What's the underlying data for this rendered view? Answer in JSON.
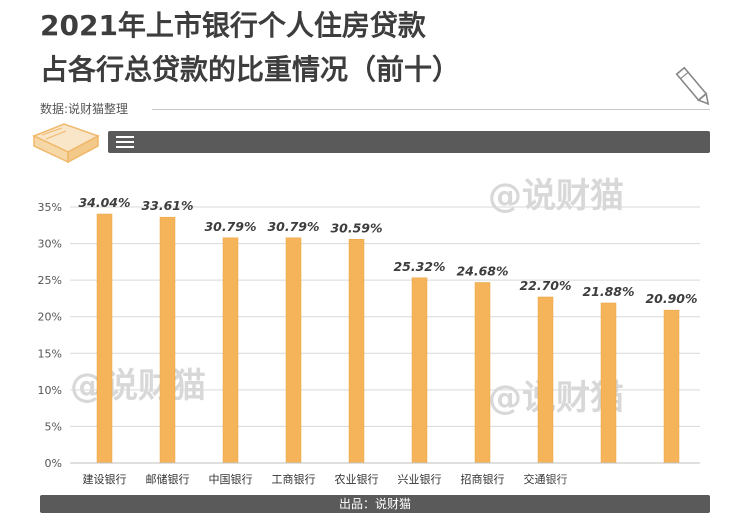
{
  "title_line1": "2021年上市银行个人住房贷款",
  "title_line2": "占各行总贷款的比重情况（前十）",
  "source_text": "数据:说财猫整理",
  "footer_text": "出品：说财猫",
  "watermark_text": "@说财猫",
  "colors": {
    "bar": "#f5b45a",
    "bar_edge": "#e9a347",
    "dark_bar": "#5a5a5a",
    "title": "#3d3d3d"
  },
  "chart_data": {
    "type": "bar",
    "title": "2021年上市银行个人住房贷款 占各行总贷款的比重情况（前十）",
    "categories": [
      "建设银行",
      "邮储银行",
      "中国银行",
      "工商银行",
      "农业银行",
      "兴业银行",
      "招商银行",
      "交通银行",
      "",
      ""
    ],
    "values": [
      34.04,
      33.61,
      30.79,
      30.79,
      30.59,
      25.32,
      24.68,
      22.7,
      21.88,
      20.9
    ],
    "data_labels": [
      "34.04%",
      "33.61%",
      "30.79%",
      "30.79%",
      "30.59%",
      "25.32%",
      "24.68%",
      "22.70%",
      "21.88%",
      "20.90%"
    ],
    "y_ticks": [
      "0%",
      "5%",
      "10%",
      "15%",
      "20%",
      "25%",
      "30%",
      "35%"
    ],
    "ylim": [
      0,
      35
    ],
    "grid": true
  }
}
